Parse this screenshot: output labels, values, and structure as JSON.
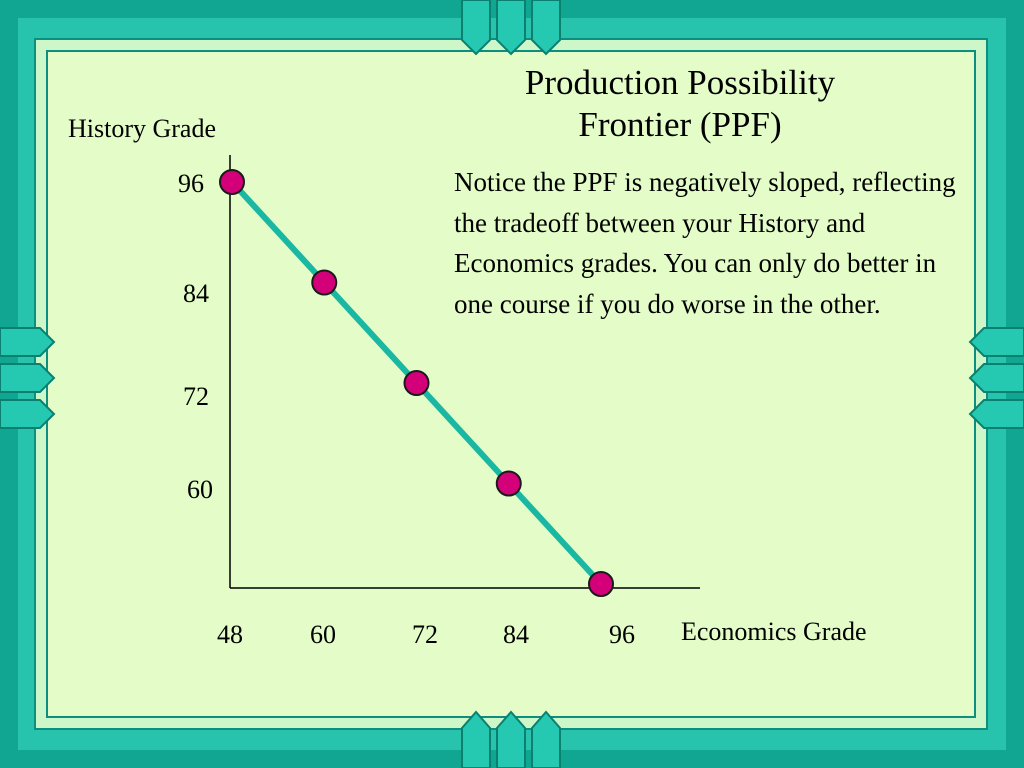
{
  "slide": {
    "title_line1": "Production Possibility",
    "title_line2": "Frontier (PPF)",
    "note": "Notice the PPF is negatively sloped, reflecting the tradeoff between your History and Economics grades.  You can only do better in one course if you do worse in the other."
  },
  "colors": {
    "frame_dark": "#11a692",
    "frame_light": "#27c3ad",
    "background": "#e3fcc8",
    "curve": "#1ab8a3",
    "points": "#d4007a"
  },
  "chart_data": {
    "type": "line",
    "title": "",
    "xlabel": "Economics Grade",
    "ylabel": "History Grade",
    "x_ticks": [
      "48",
      "60",
      "72",
      "84",
      "96"
    ],
    "y_ticks": [
      "96",
      "84",
      "72",
      "60"
    ],
    "xlim": [
      48,
      96
    ],
    "ylim": [
      48,
      96
    ],
    "grid": false,
    "series": [
      {
        "name": "",
        "x": [
          48,
          60,
          72,
          84,
          96
        ],
        "y": [
          96,
          84,
          72,
          60,
          48
        ]
      }
    ]
  }
}
